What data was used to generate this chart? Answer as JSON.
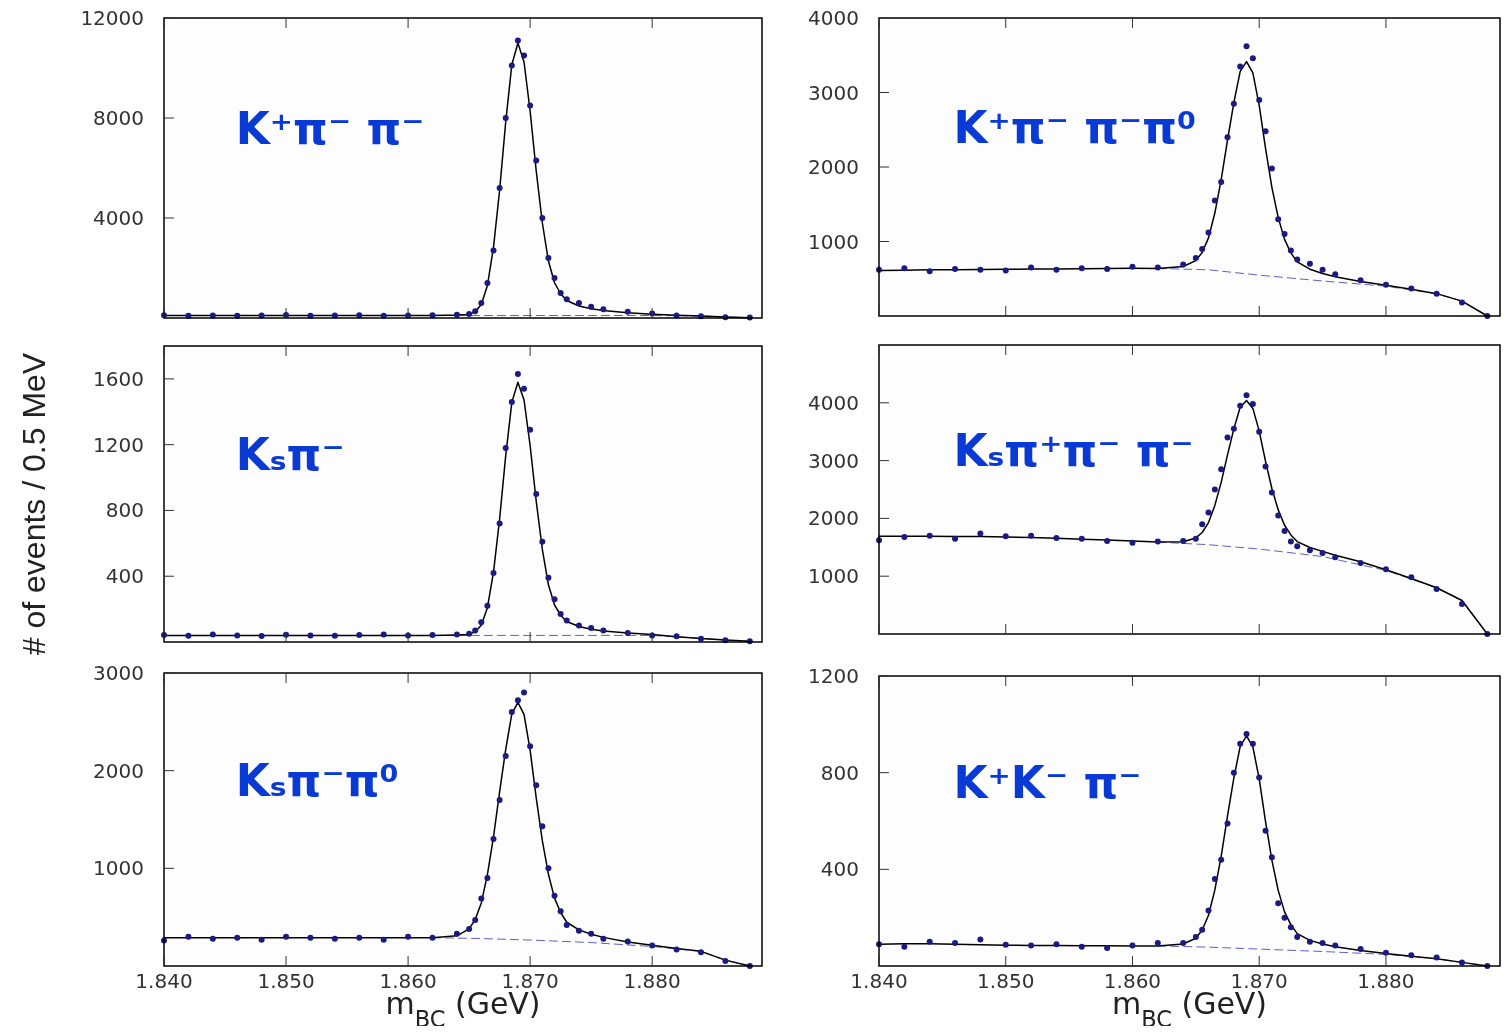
{
  "chart_data": [
    {
      "type": "scatter",
      "annotations": [
        "K⁺π⁻ π⁻"
      ],
      "xlim": [
        1.84,
        1.889
      ],
      "xticks": [
        1.84,
        1.85,
        1.86,
        1.87,
        1.88
      ],
      "ylim": [
        0,
        12000
      ],
      "yticks": [
        4000,
        8000,
        12000
      ],
      "tick_labels": "y",
      "x": [
        1.84,
        1.842,
        1.844,
        1.846,
        1.848,
        1.85,
        1.852,
        1.854,
        1.856,
        1.858,
        1.86,
        1.862,
        1.864,
        1.865,
        1.8655,
        1.866,
        1.8665,
        1.867,
        1.8675,
        1.868,
        1.8685,
        1.869,
        1.8695,
        1.87,
        1.8705,
        1.871,
        1.8715,
        1.872,
        1.8725,
        1.873,
        1.874,
        1.875,
        1.876,
        1.878,
        1.88,
        1.882,
        1.884,
        1.886,
        1.888
      ],
      "series": [
        {
          "type": "line",
          "color": "#6060c0",
          "line_style": "dashed",
          "x": [
            1.862,
            1.866,
            1.87,
            1.875,
            1.88,
            1.884,
            1.886,
            1.888
          ],
          "values": [
            100,
            100,
            100,
            100,
            100,
            80,
            40,
            10
          ]
        },
        {
          "type": "line",
          "color": "#000000",
          "line_style": "solid",
          "values": [
            100,
            100,
            100,
            100,
            100,
            100,
            100,
            100,
            100,
            100,
            100,
            100,
            120,
            145,
            250,
            540,
            1300,
            2830,
            5110,
            7840,
            10130,
            11000,
            10240,
            8280,
            5880,
            3810,
            2280,
            1410,
            970,
            700,
            480,
            370,
            300,
            210,
            150,
            110,
            80,
            40,
            10
          ]
        },
        {
          "color": "#1a1a80",
          "marker": "circle",
          "values": [
            110,
            90,
            105,
            95,
            100,
            120,
            95,
            100,
            110,
            90,
            105,
            115,
            130,
            160,
            270,
            600,
            1400,
            2700,
            5200,
            8000,
            10100,
            11100,
            10500,
            8500,
            6300,
            4000,
            2400,
            1600,
            1000,
            750,
            600,
            450,
            350,
            250,
            180,
            100,
            70,
            30,
            20
          ]
        }
      ]
    },
    {
      "type": "scatter",
      "annotations": [
        "K⁺π⁻ π⁻π⁰"
      ],
      "xlim": [
        1.84,
        1.889
      ],
      "xticks": [
        1.84,
        1.85,
        1.86,
        1.87,
        1.88
      ],
      "ylim": [
        0,
        4000
      ],
      "yticks": [
        1000,
        2000,
        3000,
        4000
      ],
      "tick_labels": "y",
      "x": [
        1.84,
        1.842,
        1.844,
        1.846,
        1.848,
        1.85,
        1.852,
        1.854,
        1.856,
        1.858,
        1.86,
        1.862,
        1.864,
        1.865,
        1.8655,
        1.866,
        1.8665,
        1.867,
        1.8675,
        1.868,
        1.8685,
        1.869,
        1.8695,
        1.87,
        1.8705,
        1.871,
        1.8715,
        1.872,
        1.8725,
        1.873,
        1.874,
        1.875,
        1.876,
        1.878,
        1.88,
        1.882,
        1.884,
        1.886,
        1.888
      ],
      "series": [
        {
          "type": "line",
          "color": "#6060c0",
          "line_style": "dashed",
          "x": [
            1.862,
            1.866,
            1.87,
            1.875,
            1.88,
            1.884,
            1.886,
            1.888
          ],
          "values": [
            638,
            620,
            548,
            470,
            400,
            300,
            200,
            0
          ]
        },
        {
          "type": "line",
          "color": "#000000",
          "line_style": "solid",
          "values": [
            610,
            615,
            620,
            622,
            625,
            628,
            630,
            632,
            635,
            637,
            640,
            638,
            665,
            744,
            853,
            1048,
            1382,
            1831,
            2362,
            2865,
            3283,
            3415,
            3263,
            2828,
            2250,
            1727,
            1320,
            1028,
            847,
            726,
            628,
            570,
            526,
            464,
            414,
            360,
            300,
            200,
            0
          ]
        },
        {
          "color": "#1a1a80",
          "marker": "circle",
          "values": [
            620,
            640,
            600,
            630,
            620,
            610,
            650,
            620,
            640,
            630,
            660,
            650,
            690,
            780,
            900,
            1120,
            1550,
            1800,
            2400,
            2850,
            3350,
            3620,
            3460,
            2900,
            2480,
            1980,
            1300,
            1100,
            880,
            760,
            700,
            620,
            560,
            480,
            420,
            370,
            300,
            180,
            0
          ]
        }
      ]
    },
    {
      "type": "scatter",
      "annotations": [
        "Kₛπ⁻"
      ],
      "ylabel": "# of events / 0.5 MeV",
      "xlim": [
        1.84,
        1.889
      ],
      "xticks": [
        1.84,
        1.85,
        1.86,
        1.87,
        1.88
      ],
      "ylim": [
        0,
        1800
      ],
      "yticks": [
        400,
        800,
        1200,
        1600
      ],
      "tick_labels": "y",
      "x": [
        1.84,
        1.842,
        1.844,
        1.846,
        1.848,
        1.85,
        1.852,
        1.854,
        1.856,
        1.858,
        1.86,
        1.862,
        1.864,
        1.865,
        1.8655,
        1.866,
        1.8665,
        1.867,
        1.8675,
        1.868,
        1.8685,
        1.869,
        1.8695,
        1.87,
        1.8705,
        1.871,
        1.8715,
        1.872,
        1.8725,
        1.873,
        1.874,
        1.875,
        1.876,
        1.878,
        1.88,
        1.882,
        1.884,
        1.886,
        1.888
      ],
      "series": [
        {
          "type": "line",
          "color": "#6060c0",
          "line_style": "dashed",
          "x": [
            1.862,
            1.866,
            1.87,
            1.875,
            1.88,
            1.884,
            1.886,
            1.888
          ],
          "values": [
            40,
            40,
            40,
            40,
            40,
            22,
            12,
            4
          ]
        },
        {
          "type": "line",
          "color": "#000000",
          "line_style": "solid",
          "values": [
            40,
            40,
            40,
            40,
            40,
            40,
            40,
            40,
            40,
            40,
            40,
            40,
            43,
            46,
            62,
            102,
            209,
            425,
            748,
            1133,
            1457,
            1580,
            1472,
            1195,
            856,
            564,
            348,
            225,
            163,
            125,
            94,
            78,
            67,
            55,
            45,
            32,
            22,
            12,
            4
          ]
        },
        {
          "color": "#1a1a80",
          "marker": "circle",
          "values": [
            42,
            38,
            45,
            40,
            36,
            44,
            40,
            38,
            42,
            45,
            40,
            42,
            45,
            50,
            70,
            120,
            220,
            420,
            720,
            1180,
            1460,
            1630,
            1540,
            1290,
            900,
            610,
            390,
            260,
            170,
            130,
            100,
            85,
            70,
            55,
            40,
            35,
            20,
            10,
            5
          ]
        }
      ]
    },
    {
      "type": "scatter",
      "annotations": [
        "Kₛπ⁺π⁻ π⁻"
      ],
      "xlim": [
        1.84,
        1.889
      ],
      "xticks": [
        1.84,
        1.85,
        1.86,
        1.87,
        1.88
      ],
      "ylim": [
        0,
        5000
      ],
      "yticks": [
        1000,
        2000,
        3000,
        4000
      ],
      "tick_labels": "y",
      "x": [
        1.84,
        1.842,
        1.844,
        1.846,
        1.848,
        1.85,
        1.852,
        1.854,
        1.856,
        1.858,
        1.86,
        1.862,
        1.864,
        1.865,
        1.8655,
        1.866,
        1.8665,
        1.867,
        1.8675,
        1.868,
        1.8685,
        1.869,
        1.8695,
        1.87,
        1.8705,
        1.871,
        1.8715,
        1.872,
        1.8725,
        1.873,
        1.874,
        1.875,
        1.876,
        1.878,
        1.88,
        1.882,
        1.884,
        1.886,
        1.888
      ],
      "series": [
        {
          "type": "line",
          "color": "#6060c0",
          "line_style": "dashed",
          "x": [
            1.862,
            1.866,
            1.87,
            1.875,
            1.88,
            1.884,
            1.886,
            1.888
          ],
          "values": [
            1590,
            1545,
            1470,
            1340,
            1100,
            800,
            580,
            0
          ]
        },
        {
          "type": "line",
          "color": "#000000",
          "line_style": "solid",
          "values": [
            1690,
            1690,
            1690,
            1688,
            1685,
            1680,
            1670,
            1655,
            1640,
            1625,
            1610,
            1590,
            1596,
            1662,
            1756,
            1928,
            2225,
            2624,
            3099,
            3549,
            3923,
            4040,
            3903,
            3510,
            2988,
            2517,
            2148,
            1881,
            1714,
            1599,
            1496,
            1429,
            1364,
            1251,
            1113,
            960,
            800,
            580,
            0
          ]
        },
        {
          "color": "#1a1a80",
          "marker": "circle",
          "values": [
            1620,
            1680,
            1700,
            1650,
            1740,
            1690,
            1700,
            1660,
            1650,
            1610,
            1580,
            1600,
            1610,
            1650,
            1900,
            2100,
            2500,
            2850,
            3400,
            3550,
            3950,
            4130,
            3980,
            3500,
            2900,
            2450,
            2050,
            1780,
            1600,
            1520,
            1450,
            1400,
            1330,
            1230,
            1120,
            980,
            780,
            520,
            0
          ]
        }
      ]
    },
    {
      "type": "scatter",
      "annotations": [
        "Kₛπ⁻π⁰"
      ],
      "xlabel": "m$_{BC}$ (GeV)",
      "xlim": [
        1.84,
        1.889
      ],
      "xticks": [
        {
          "value": 1.84,
          "label": "1.840"
        },
        {
          "value": 1.85,
          "label": "1.850"
        },
        {
          "value": 1.86,
          "label": "1.860"
        },
        {
          "value": 1.87,
          "label": "1.870"
        },
        {
          "value": 1.88,
          "label": "1.880"
        }
      ],
      "ylim": [
        0,
        3000
      ],
      "yticks": [
        1000,
        2000,
        3000
      ],
      "x": [
        1.84,
        1.842,
        1.844,
        1.846,
        1.848,
        1.85,
        1.852,
        1.854,
        1.856,
        1.858,
        1.86,
        1.862,
        1.864,
        1.865,
        1.8655,
        1.866,
        1.8665,
        1.867,
        1.8675,
        1.868,
        1.8685,
        1.869,
        1.8695,
        1.87,
        1.8705,
        1.871,
        1.8715,
        1.872,
        1.8725,
        1.873,
        1.874,
        1.875,
        1.876,
        1.878,
        1.88,
        1.882,
        1.884,
        1.886,
        1.888
      ],
      "series": [
        {
          "type": "line",
          "color": "#6060c0",
          "line_style": "dashed",
          "x": [
            1.862,
            1.866,
            1.87,
            1.875,
            1.88,
            1.884,
            1.886,
            1.888
          ],
          "values": [
            290,
            281,
            266,
            240,
            200,
            150,
            60,
            0
          ]
        },
        {
          "type": "line",
          "color": "#000000",
          "line_style": "solid",
          "values": [
            290,
            290,
            290,
            290,
            290,
            290,
            290,
            290,
            290,
            290,
            290,
            290,
            309,
            380,
            476,
            646,
            936,
            1323,
            1783,
            2218,
            2581,
            2700,
            2577,
            2210,
            1722,
            1283,
            940,
            695,
            548,
            448,
            370,
            325,
            293,
            245,
            212,
            180,
            150,
            60,
            0
          ]
        },
        {
          "color": "#1a1a80",
          "marker": "circle",
          "values": [
            260,
            300,
            280,
            290,
            270,
            300,
            290,
            280,
            290,
            270,
            300,
            290,
            330,
            380,
            470,
            690,
            900,
            1300,
            1700,
            2150,
            2600,
            2720,
            2800,
            2250,
            1850,
            1430,
            1000,
            720,
            560,
            420,
            360,
            330,
            280,
            250,
            210,
            170,
            140,
            50,
            0
          ]
        }
      ]
    },
    {
      "type": "scatter",
      "annotations": [
        "K⁺K⁻ π⁻"
      ],
      "xlabel": "m$_{BC}$ (GeV)",
      "xlim": [
        1.84,
        1.889
      ],
      "xticks": [
        {
          "value": 1.84,
          "label": "1.840"
        },
        {
          "value": 1.85,
          "label": "1.850"
        },
        {
          "value": 1.86,
          "label": "1.860"
        },
        {
          "value": 1.87,
          "label": "1.870"
        },
        {
          "value": 1.88,
          "label": "1.880"
        }
      ],
      "ylim": [
        0,
        1200
      ],
      "yticks": [
        400,
        800,
        1200
      ],
      "x": [
        1.84,
        1.842,
        1.844,
        1.846,
        1.848,
        1.85,
        1.852,
        1.854,
        1.856,
        1.858,
        1.86,
        1.862,
        1.864,
        1.865,
        1.8655,
        1.866,
        1.8665,
        1.867,
        1.8675,
        1.868,
        1.8685,
        1.869,
        1.8695,
        1.87,
        1.8705,
        1.871,
        1.8715,
        1.872,
        1.8725,
        1.873,
        1.874,
        1.875,
        1.876,
        1.878,
        1.88,
        1.882,
        1.884,
        1.886,
        1.888
      ],
      "series": [
        {
          "type": "line",
          "color": "#6060c0",
          "line_style": "dashed",
          "x": [
            1.862,
            1.866,
            1.87,
            1.875,
            1.88,
            1.884,
            1.886,
            1.888
          ],
          "values": [
            83,
            78,
            70,
            60,
            48,
            30,
            15,
            0
          ]
        },
        {
          "type": "line",
          "color": "#000000",
          "line_style": "solid",
          "values": [
            90,
            92,
            92,
            90,
            88,
            86,
            85,
            85,
            84,
            84,
            83,
            83,
            91,
            115,
            149,
            210,
            315,
            454,
            621,
            778,
            909,
            952,
            907,
            774,
            597,
            438,
            313,
            224,
            171,
            134,
            106,
            91,
            80,
            64,
            52,
            40,
            30,
            15,
            0
          ]
        },
        {
          "color": "#1a1a80",
          "marker": "circle",
          "values": [
            90,
            80,
            100,
            95,
            110,
            88,
            85,
            90,
            80,
            75,
            85,
            95,
            95,
            120,
            150,
            230,
            360,
            440,
            590,
            800,
            920,
            960,
            920,
            780,
            560,
            450,
            260,
            200,
            160,
            120,
            100,
            95,
            85,
            70,
            55,
            45,
            35,
            15,
            0
          ]
        }
      ]
    }
  ]
}
